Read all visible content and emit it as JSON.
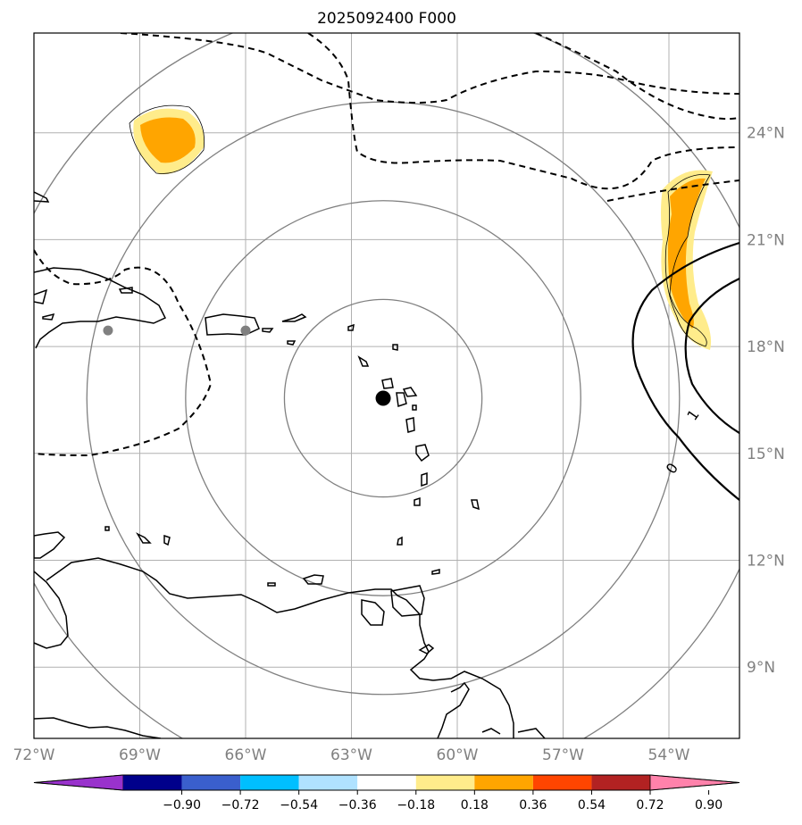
{
  "title": "2025092400 F000",
  "map": {
    "extent": {
      "lon_min": -72,
      "lon_max": -52,
      "lat_min": 7,
      "lat_max": 26.8
    },
    "lon_ticks": [
      {
        "value": -72,
        "label": "72°W"
      },
      {
        "value": -69,
        "label": "69°W"
      },
      {
        "value": -66,
        "label": "66°W"
      },
      {
        "value": -63,
        "label": "63°W"
      },
      {
        "value": -60,
        "label": "60°W"
      },
      {
        "value": -57,
        "label": "57°W"
      },
      {
        "value": -54,
        "label": "54°W"
      }
    ],
    "lat_ticks": [
      {
        "value": 24,
        "label": "24°N"
      },
      {
        "value": 21,
        "label": "21°N"
      },
      {
        "value": 18,
        "label": "18°N"
      },
      {
        "value": 15,
        "label": "15°N"
      },
      {
        "value": 12,
        "label": "12°N"
      },
      {
        "value": 9,
        "label": "9°N"
      }
    ],
    "gridlines": true,
    "center_marker": {
      "lon": -62.1,
      "lat": 16.55
    },
    "gray_markers": [
      {
        "lon": -69.9,
        "lat": 18.45
      },
      {
        "lon": -66.0,
        "lat": 18.45
      }
    ],
    "range_rings_deg": [
      2.8,
      5.6,
      8.4,
      11.2
    ],
    "contour_labels": [
      {
        "text": "1",
        "lon": -53.2,
        "lat": 16.0
      },
      {
        "text": "0",
        "lon": -53.8,
        "lat": 14.5
      }
    ]
  },
  "colorbar": {
    "ticks": [
      "−0.90",
      "−0.72",
      "−0.54",
      "−0.36",
      "−0.18",
      "0.18",
      "0.36",
      "0.54",
      "0.72",
      "0.90"
    ],
    "colors": [
      "#9932cc",
      "#00008b",
      "#3a5fcd",
      "#00bfff",
      "#b0e2ff",
      "#ffffff",
      "#ffec8b",
      "#ffa500",
      "#ff4500",
      "#b22222",
      "#ff82ab"
    ]
  }
}
